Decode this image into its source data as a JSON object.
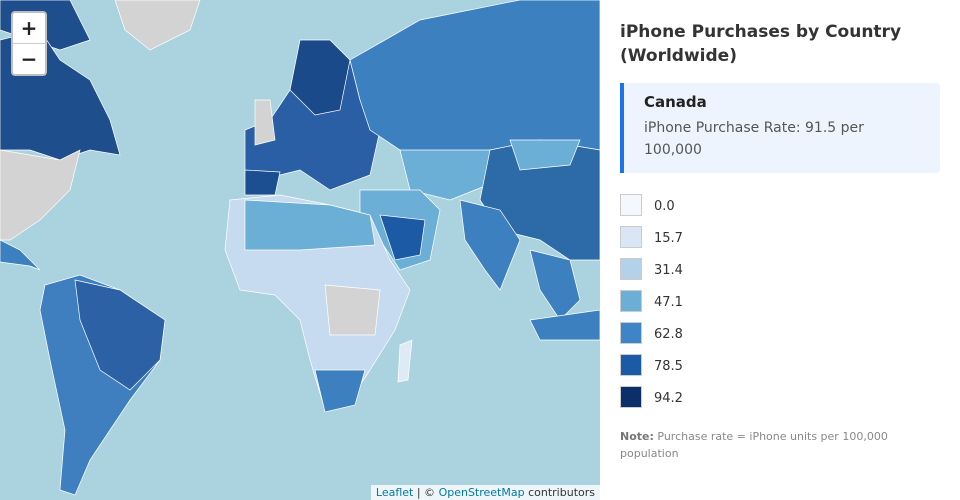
{
  "zoom": {
    "in": "+",
    "out": "−"
  },
  "panel": {
    "title": "iPhone Purchases by Country (Worldwide)",
    "info": {
      "country": "Canada",
      "rate": "iPhone Purchase Rate: 91.5 per 100,000"
    },
    "legend": {
      "items": [
        {
          "value": {
            "value": 0,
            "label": "0.0"
          },
          "color": "#f4f8fd"
        },
        {
          "value": 15.7,
          "color": "#d9e6f5"
        },
        {
          "value": 31.4,
          "color": "#b3d2ea"
        },
        {
          "value": 47.1,
          "color": "#6baed6"
        },
        {
          "value": 62.8,
          "color": "#3d85c6"
        },
        {
          "value": 78.5,
          "color": "#1b5aa5"
        },
        {
          "value": 94.2,
          "color": "#0b2f6b"
        }
      ]
    },
    "note": {
      "label": "Note:",
      "text": "Purchase rate = iPhone units per 100,000 population"
    }
  },
  "attribution": {
    "leaflet": "Leaflet",
    "sep": "| ©",
    "osm": "OpenStreetMap",
    "rest": "contributors"
  }
}
